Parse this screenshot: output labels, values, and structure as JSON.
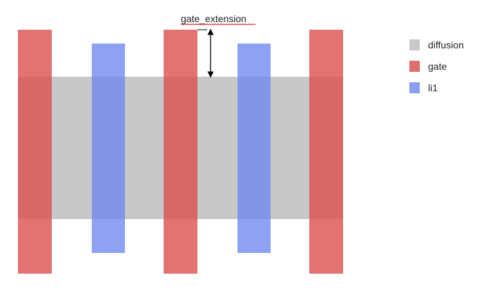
{
  "diagram": {
    "dimension_label": "gate_extension"
  },
  "legend": {
    "items": [
      {
        "label": "diffusion",
        "color": "#c8c8c8"
      },
      {
        "label": "gate",
        "color": "#e06c6c"
      },
      {
        "label": "li1",
        "color": "#8b9ff0"
      }
    ]
  },
  "colors": {
    "diffusion": "#c8c8c8",
    "gate": "#e37272",
    "li1": "#8ea0ee",
    "arrow": "#000000"
  }
}
